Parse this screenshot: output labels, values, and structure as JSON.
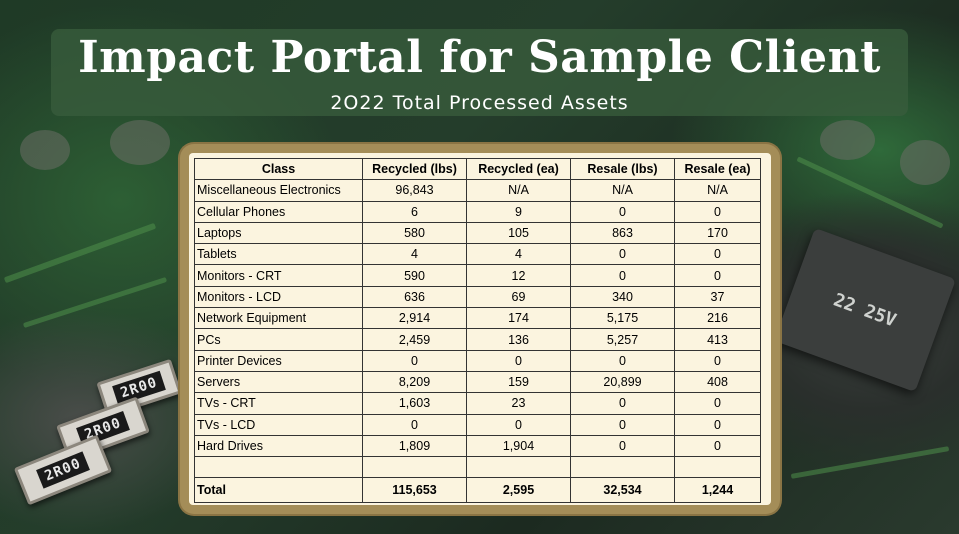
{
  "header": {
    "title": "Impact Portal for Sample Client",
    "subtitle": "2O22 Total Processed Assets"
  },
  "table": {
    "columns": [
      "Class",
      "Recycled (lbs)",
      "Recycled (ea)",
      "Resale (lbs)",
      "Resale (ea)"
    ],
    "rows": [
      [
        "Miscellaneous Electronics",
        "96,843",
        "N/A",
        "N/A",
        "N/A"
      ],
      [
        "Cellular Phones",
        "6",
        "9",
        "0",
        "0"
      ],
      [
        "Laptops",
        "580",
        "105",
        "863",
        "170"
      ],
      [
        "Tablets",
        "4",
        "4",
        "0",
        "0"
      ],
      [
        "Monitors - CRT",
        "590",
        "12",
        "0",
        "0"
      ],
      [
        "Monitors - LCD",
        "636",
        "69",
        "340",
        "37"
      ],
      [
        "Network Equipment",
        "2,914",
        "174",
        "5,175",
        "216"
      ],
      [
        "PCs",
        "2,459",
        "136",
        "5,257",
        "413"
      ],
      [
        "Printer Devices",
        "0",
        "0",
        "0",
        "0"
      ],
      [
        "Servers",
        "8,209",
        "159",
        "20,899",
        "408"
      ],
      [
        "TVs  - CRT",
        "1,603",
        "23",
        "0",
        "0"
      ],
      [
        "TVs  - LCD",
        "0",
        "0",
        "0",
        "0"
      ],
      [
        "Hard Drives",
        "1,809",
        "1,904",
        "0",
        "0"
      ]
    ],
    "total": [
      "Total",
      "115,653",
      "2,595",
      "32,534",
      "1,244"
    ]
  },
  "background": {
    "chip_labels": [
      "2R00",
      "2R00",
      "2R00",
      "22 25V"
    ]
  }
}
